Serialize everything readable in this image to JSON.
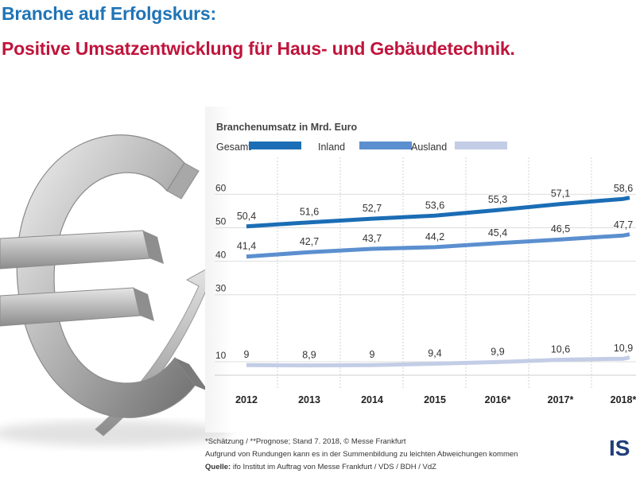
{
  "headline": {
    "title": "Branche auf Erfolgskurs:",
    "subtitle": "Positive Umsatzentwicklung für Haus- und Gebäudetechnik."
  },
  "colors": {
    "title_blue": "#1f74b6",
    "title_red": "#c0143c",
    "gesamt": "#1b6db5",
    "inland": "#5b8fcf",
    "ausland": "#c3cde6"
  },
  "chart_data": {
    "type": "line",
    "title": "Branchenumsatz in Mrd. Euro",
    "categories": [
      "2012",
      "2013",
      "2014",
      "2015",
      "2016*",
      "2017*",
      "2018*"
    ],
    "series": [
      {
        "name": "Gesamt",
        "values": [
          50.4,
          51.6,
          52.7,
          53.6,
          55.3,
          57.1,
          58.6
        ],
        "labels": [
          "50,4",
          "51,6",
          "52,7",
          "53,6",
          "55,3",
          "57,1",
          "58,6"
        ]
      },
      {
        "name": "Inland",
        "values": [
          41.4,
          42.7,
          43.7,
          44.2,
          45.4,
          46.5,
          47.7
        ],
        "labels": [
          "41,4",
          "42,7",
          "43,7",
          "44,2",
          "45,4",
          "46,5",
          "47,7"
        ]
      },
      {
        "name": "Ausland",
        "values": [
          9,
          8.9,
          9,
          9.4,
          9.9,
          10.6,
          10.9
        ],
        "labels": [
          "9",
          "8,9",
          "9",
          "9,4",
          "9,9",
          "10,6",
          "10,9"
        ]
      }
    ],
    "yticks": [
      "10",
      "30",
      "40",
      "50",
      "60"
    ],
    "ylim": [
      10,
      60
    ],
    "grid": true,
    "legend": "top"
  },
  "footnotes": {
    "line1": "*Schätzung / **Prognose; Stand 7. 2018, © Messe Frankfurt",
    "line2": "Aufgrund von Rundungen kann es in der Summenbildung zu leichten Abweichungen kommen",
    "source_label": "Quelle:",
    "source_text": " ifo Institut im Auftrag von Messe Frankfurt / VDS / BDH / VdZ"
  },
  "logo": "IS"
}
